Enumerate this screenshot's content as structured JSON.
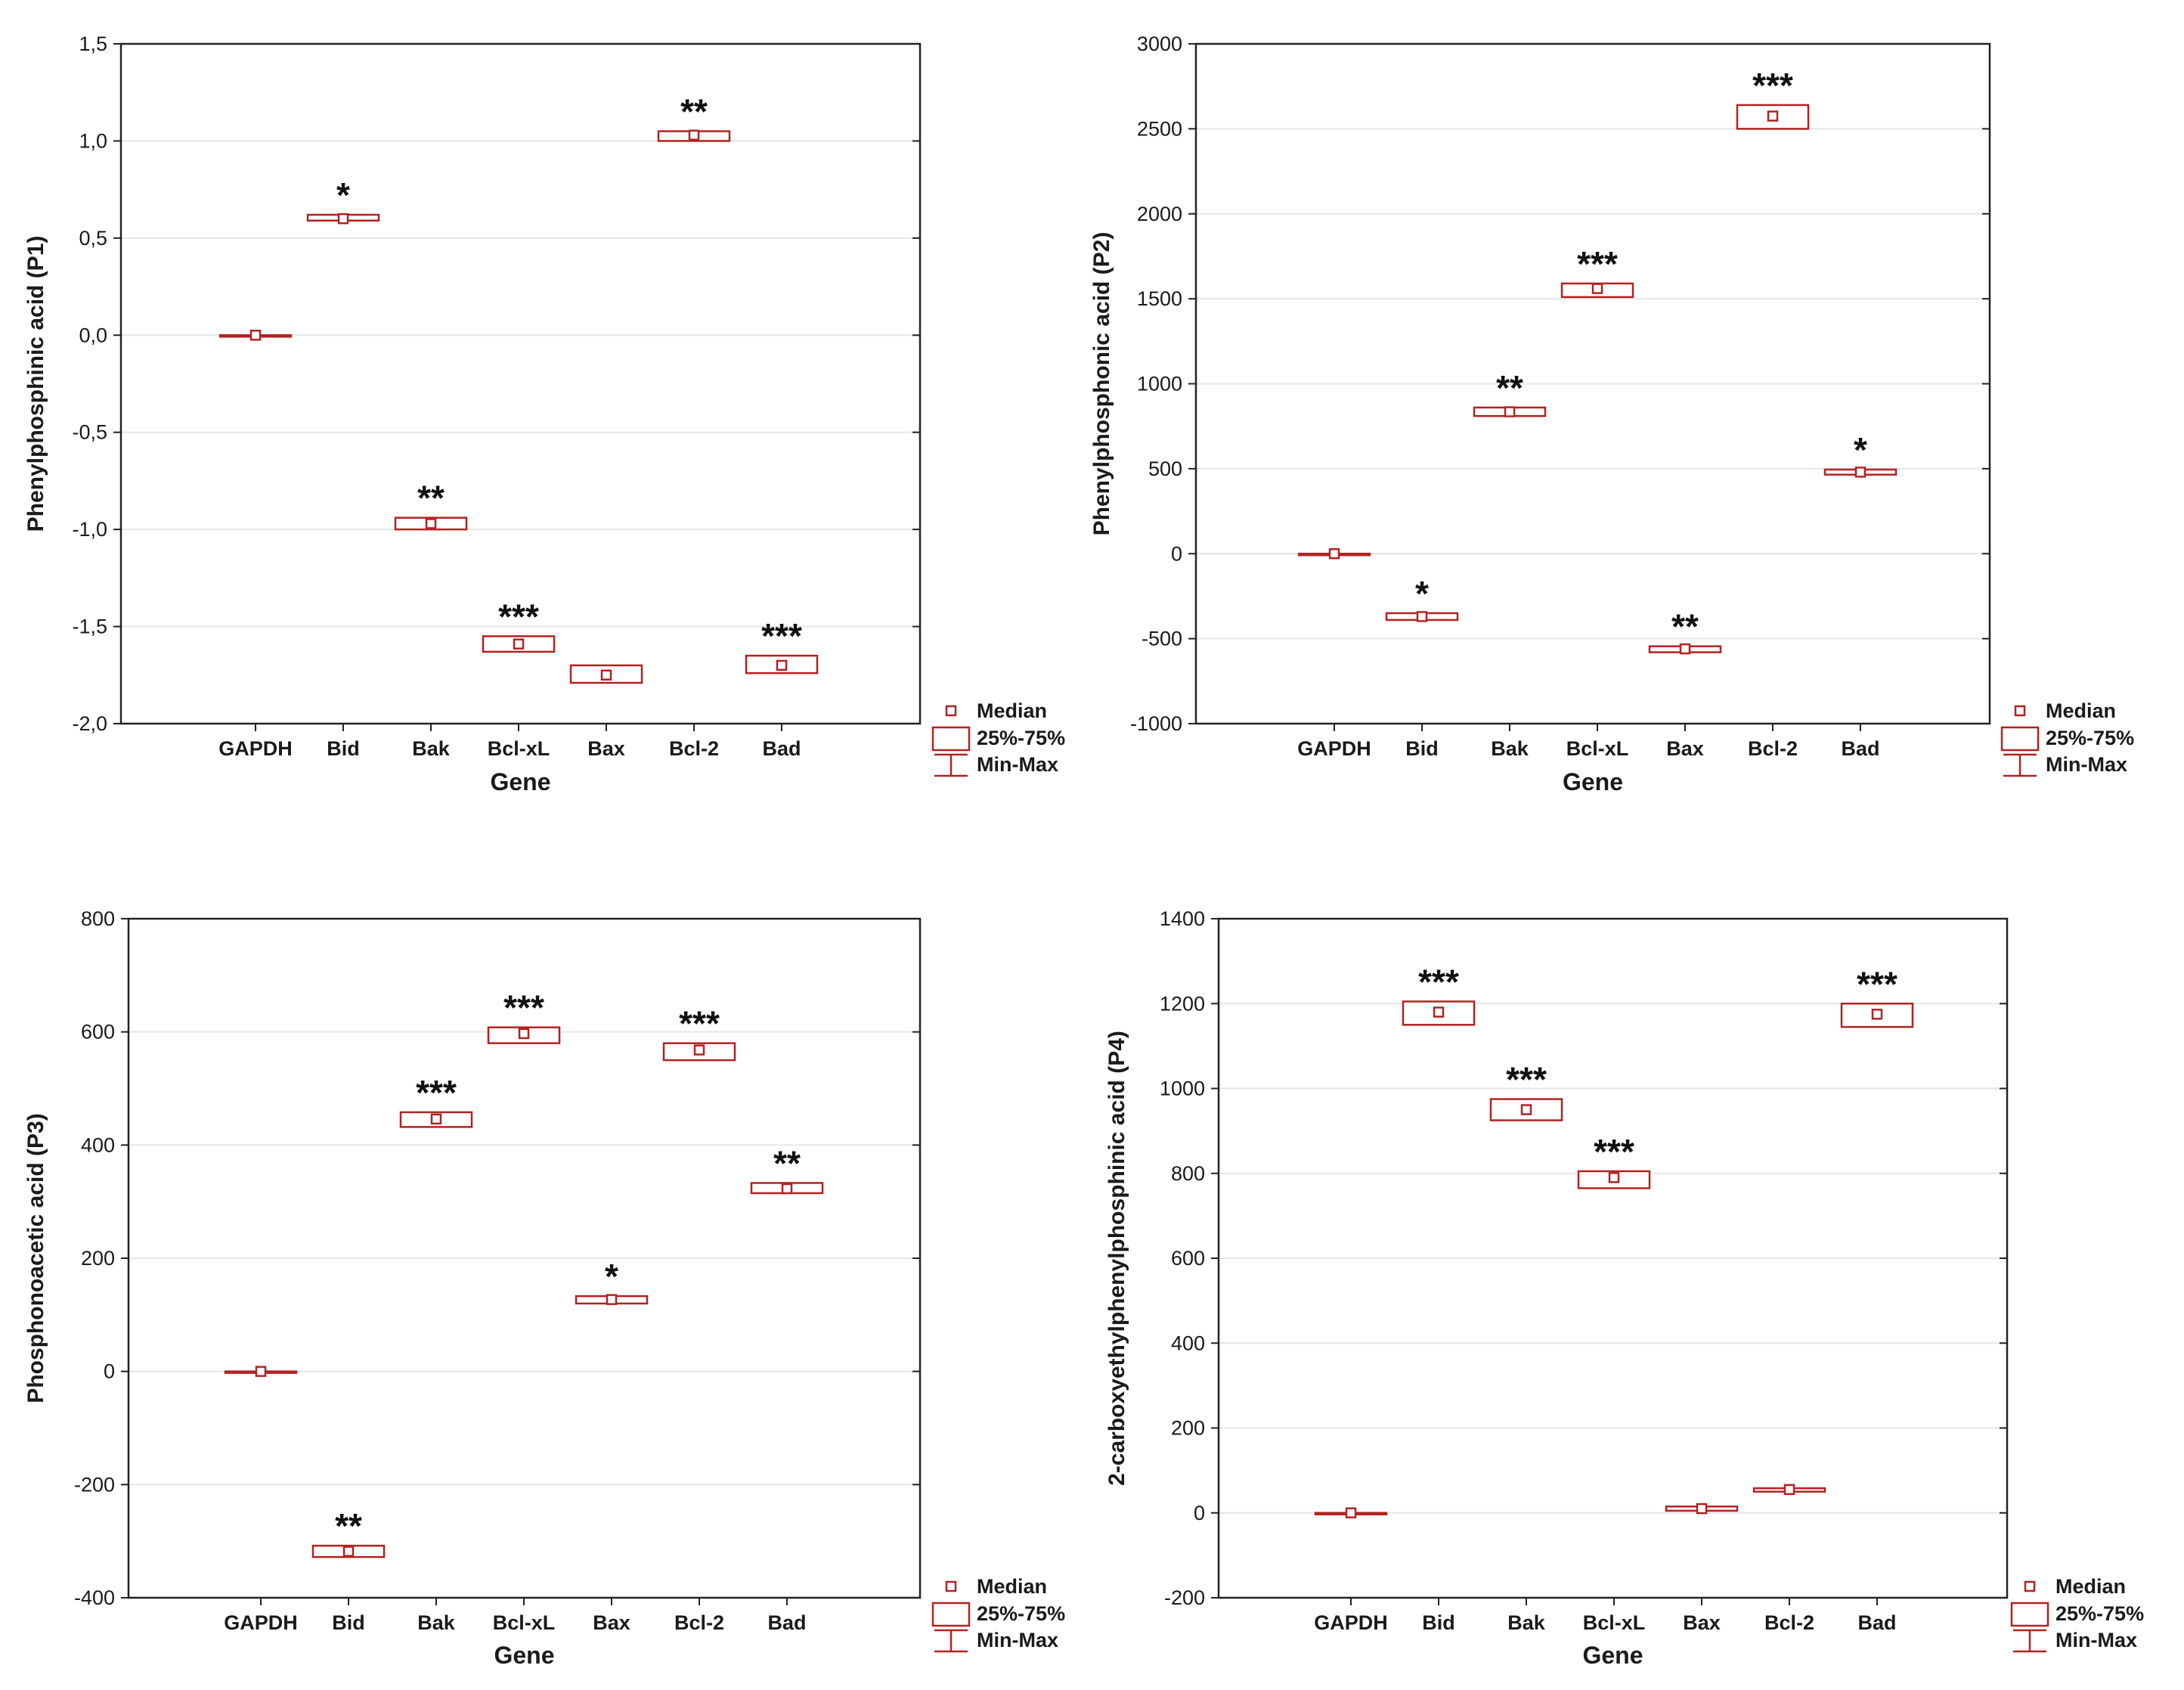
{
  "chart_data": [
    {
      "type": "box",
      "title": "",
      "ylabel": "Phenylphosphinic acid (P1)",
      "xlabel": "Gene",
      "categories": [
        "GAPDH",
        "Bid",
        "Bak",
        "Bcl-xL",
        "Bax",
        "Bcl-2",
        "Bad"
      ],
      "ylim": [
        -2.0,
        1.5
      ],
      "yticks": [
        -2.0,
        -1.5,
        -1.0,
        -0.5,
        0.0,
        0.5,
        1.0,
        1.5
      ],
      "ytick_labels": [
        "-2,0",
        "-1,5",
        "-1,0",
        "-0,5",
        "0,0",
        "0,5",
        "1,0",
        "1,5"
      ],
      "grid": true,
      "median": [
        0.0,
        0.6,
        -0.97,
        -1.59,
        -1.75,
        1.03,
        -1.7
      ],
      "q1": [
        0.0,
        0.59,
        -1.0,
        -1.63,
        -1.79,
        1.0,
        -1.74
      ],
      "q3": [
        0.0,
        0.62,
        -0.94,
        -1.55,
        -1.7,
        1.05,
        -1.65
      ],
      "min": [
        0.0,
        0.59,
        -1.0,
        -1.63,
        -1.79,
        1.0,
        -1.74
      ],
      "max": [
        0.0,
        0.62,
        -0.94,
        -1.55,
        -1.7,
        1.05,
        -1.65
      ],
      "significance": [
        "",
        "*",
        "**",
        "***",
        "",
        "**",
        "***"
      ],
      "legend": [
        "Median",
        "25%-75%",
        "Min-Max"
      ]
    },
    {
      "type": "box",
      "title": "",
      "ylabel": "Phenylphosphonic acid (P2)",
      "xlabel": "Gene",
      "categories": [
        "GAPDH",
        "Bid",
        "Bak",
        "Bcl-xL",
        "Bax",
        "Bcl-2",
        "Bad"
      ],
      "ylim": [
        -1000,
        3000
      ],
      "yticks": [
        -1000,
        -500,
        0,
        500,
        1000,
        1500,
        2000,
        2500,
        3000
      ],
      "ytick_labels": [
        "-1000",
        "-500",
        "0",
        "500",
        "1000",
        "1500",
        "2000",
        "2500",
        "3000"
      ],
      "grid": true,
      "median": [
        0,
        -370,
        835,
        1560,
        -560,
        2575,
        480
      ],
      "q1": [
        0,
        -390,
        810,
        1510,
        -580,
        2500,
        465
      ],
      "q3": [
        0,
        -350,
        860,
        1590,
        -545,
        2640,
        495
      ],
      "min": [
        0,
        -390,
        810,
        1510,
        -580,
        2500,
        465
      ],
      "max": [
        0,
        -350,
        860,
        1590,
        -545,
        2640,
        495
      ],
      "significance": [
        "",
        "*",
        "**",
        "***",
        "**",
        "***",
        "*"
      ],
      "legend": [
        "Median",
        "25%-75%",
        "Min-Max"
      ]
    },
    {
      "type": "box",
      "title": "",
      "ylabel": "Phosphonoacetic acid (P3)",
      "xlabel": "Gene",
      "categories": [
        "GAPDH",
        "Bid",
        "Bak",
        "Bcl-xL",
        "Bax",
        "Bcl-2",
        "Bad"
      ],
      "ylim": [
        -400,
        800
      ],
      "yticks": [
        -400,
        -200,
        0,
        200,
        400,
        600,
        800
      ],
      "ytick_labels": [
        "-400",
        "-200",
        "0",
        "200",
        "400",
        "600",
        "800"
      ],
      "grid": true,
      "median": [
        0,
        -318,
        446,
        597,
        127,
        568,
        323
      ],
      "q1": [
        0,
        -328,
        432,
        580,
        120,
        550,
        315
      ],
      "q3": [
        0,
        -308,
        458,
        608,
        133,
        580,
        333
      ],
      "min": [
        0,
        -328,
        432,
        580,
        120,
        550,
        315
      ],
      "max": [
        0,
        -308,
        458,
        608,
        133,
        580,
        333
      ],
      "significance": [
        "",
        "**",
        "***",
        "***",
        "*",
        "***",
        "**"
      ],
      "legend": [
        "Median",
        "25%-75%",
        "Min-Max"
      ]
    },
    {
      "type": "box",
      "title": "",
      "ylabel": "2-carboxyethylphenylphosphinic acid (P4)",
      "xlabel": "Gene",
      "categories": [
        "GAPDH",
        "Bid",
        "Bak",
        "Bcl-xL",
        "Bax",
        "Bcl-2",
        "Bad"
      ],
      "ylim": [
        -200,
        1400
      ],
      "yticks": [
        -200,
        0,
        200,
        400,
        600,
        800,
        1000,
        1200,
        1400
      ],
      "ytick_labels": [
        "-200",
        "0",
        "200",
        "400",
        "600",
        "800",
        "1000",
        "1200",
        "1400"
      ],
      "grid": true,
      "median": [
        0,
        1180,
        950,
        790,
        10,
        55,
        1175
      ],
      "q1": [
        0,
        1150,
        925,
        765,
        5,
        50,
        1145
      ],
      "q3": [
        0,
        1205,
        975,
        805,
        15,
        58,
        1200
      ],
      "min": [
        0,
        1150,
        925,
        765,
        5,
        50,
        1145
      ],
      "max": [
        0,
        1205,
        975,
        805,
        15,
        58,
        1200
      ],
      "significance": [
        "",
        "***",
        "***",
        "***",
        "",
        "",
        "***"
      ],
      "legend": [
        "Median",
        "25%-75%",
        "Min-Max"
      ]
    }
  ],
  "colors": {
    "box": "#b22222",
    "axis": "#222222",
    "grid": "#e6e6e6",
    "text": "#1a1a1a"
  }
}
